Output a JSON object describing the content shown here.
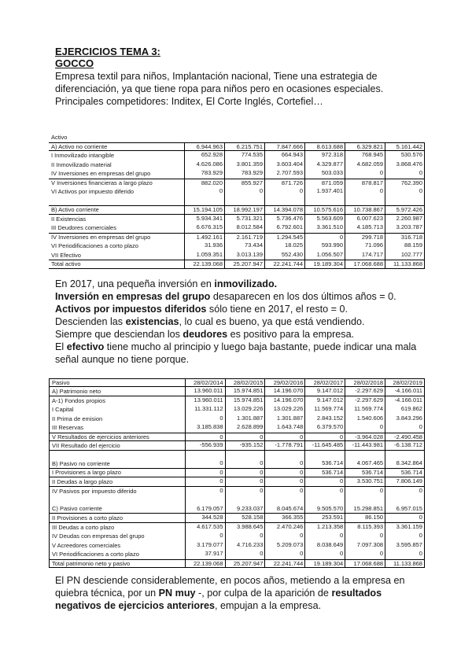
{
  "header": {
    "title": "EJERCICIOS TEMA 3:",
    "subtitle": "GOCCO"
  },
  "paragraphs": {
    "intro": [
      {
        "t": "Empresa textil para niños, Implantación nacional, Tiene una estrategia de"
      },
      {
        "br": true
      },
      {
        "t": "diferenciación, ya que tiene ropa para niños pero en ocasiones especiales."
      },
      {
        "br": true
      },
      {
        "t": "Principales competidores: Inditex, El Corte Inglés, Cortefiel…"
      }
    ],
    "activo_analysis": [
      [
        {
          "t": "En 2017, una pequeña inversión en "
        },
        {
          "t": "inmovilizado.",
          "b": true
        }
      ],
      [
        {
          "t": "Inversión en empresas del grupo",
          "b": true
        },
        {
          "t": " desaparecen en los dos últimos años = 0."
        }
      ],
      [
        {
          "t": "Activos por impuestos diferidos",
          "b": true
        },
        {
          "t": " sólo tiene en 2017, el resto = 0."
        }
      ],
      [
        {
          "t": "Descienden las "
        },
        {
          "t": "existencias",
          "b": true
        },
        {
          "t": ", lo cual es bueno, ya que está vendiendo."
        }
      ],
      [
        {
          "t": "Siempre que desciendan los "
        },
        {
          "t": "deudores",
          "b": true
        },
        {
          "t": " es positivo para la empresa."
        }
      ],
      [
        {
          "t": "El "
        },
        {
          "t": "efectivo",
          "b": true
        },
        {
          "t": " tiene mucho al principio y luego baja bastante, puede indicar una mala señal aunque no tiene porque."
        }
      ]
    ],
    "pasivo_analysis": [
      {
        "t": "El PN desciende considerablemente, en pocos años, metiendo a la empresa en"
      },
      {
        "br": true
      },
      {
        "t": "quiebra técnica, por un "
      },
      {
        "t": "PN muy",
        "b": true
      },
      {
        "t": " -, por culpa de la aparición de "
      },
      {
        "t": "resultados",
        "b": true
      },
      {
        "br": true
      },
      {
        "t": "negativos de ejercicios anteriores",
        "b": true
      },
      {
        "t": ", empujan a la empresa."
      }
    ]
  },
  "tables": {
    "activo": {
      "rows": [
        {
          "kind": "caption",
          "label": "Activo",
          "values": [
            "",
            "",
            "",
            "",
            "",
            ""
          ]
        },
        {
          "kind": "section",
          "bt": true,
          "bb": true,
          "label": "A) Activo no corriente",
          "values": [
            "6.944.963",
            "6.215.751",
            "7.847.666",
            "8.613.688",
            "6.329.821",
            "5.161.442"
          ]
        },
        {
          "kind": "item",
          "label": "I Inmovilizado intangible",
          "values": [
            "652.928",
            "774.535",
            "664.943",
            "972.318",
            "768.945",
            "530.576"
          ]
        },
        {
          "kind": "item",
          "label": "II Inmovilizado material",
          "values": [
            "4.626.086",
            "3.801.359",
            "3.603.404",
            "4.329.877",
            "4.682.059",
            "3.868.476"
          ]
        },
        {
          "kind": "item",
          "label": "IV Inversiones en empresas del grupo",
          "values": [
            "783.929",
            "783.929",
            "2.707.593",
            "503.033",
            "0",
            "0"
          ]
        },
        {
          "kind": "item",
          "bt": true,
          "label": "V Inversiones financieras a largo plazo",
          "values": [
            "882.020",
            "855.927",
            "871.726",
            "871.059",
            "878.817",
            "762.390"
          ]
        },
        {
          "kind": "item",
          "label": "VI Activos por impuesto diferido",
          "values": [
            "0",
            "0",
            "0",
            "1.937.401",
            "0",
            "0"
          ]
        },
        {
          "kind": "blank",
          "label": "",
          "values": [
            "",
            "",
            "",
            "",
            "",
            ""
          ]
        },
        {
          "kind": "section",
          "bt": true,
          "bb": true,
          "label": "B) Activo corriente",
          "values": [
            "15.194.105",
            "18.992.197",
            "14.394.078",
            "10.575.616",
            "10.738.867",
            "5.972.426"
          ]
        },
        {
          "kind": "item",
          "label": "II Existencias",
          "values": [
            "5.934.341",
            "5.731.321",
            "5.736.476",
            "5.563.609",
            "6.007.623",
            "2.260.987"
          ]
        },
        {
          "kind": "item",
          "label": "III Deudores comerciales",
          "values": [
            "6.676.315",
            "8.012.584",
            "6.792.601",
            "3.361.510",
            "4.185.713",
            "3.203.787"
          ]
        },
        {
          "kind": "item",
          "bt": true,
          "label": "IV Inversiones en empresas del grupo",
          "values": [
            "1.492.161",
            "2.161.719",
            "1.294.545",
            "0",
            "299.718",
            "316.718"
          ]
        },
        {
          "kind": "item",
          "label": "VI Periodificaciones a corto plazo",
          "values": [
            "31.936",
            "73.434",
            "18.025",
            "593.990",
            "71.096",
            "88.159"
          ]
        },
        {
          "kind": "item",
          "label": "VII Efectivo",
          "values": [
            "1.059.351",
            "3.013.139",
            "552.430",
            "1.056.507",
            "174.717",
            "102.777"
          ]
        },
        {
          "kind": "total",
          "bt": true,
          "bb": true,
          "label": "Total activo",
          "values": [
            "22.139.068",
            "25.207.947",
            "22.241.744",
            "19.189.304",
            "17.068.688",
            "11.133.868"
          ]
        }
      ]
    },
    "pasivo": {
      "rows": [
        {
          "kind": "header",
          "bt": true,
          "bb": true,
          "label": "Pasivo",
          "values": [
            "28/02/2014",
            "28/02/2015",
            "29/02/2016",
            "28/02/2017",
            "28/02/2018",
            "28/02/2019"
          ]
        },
        {
          "kind": "section",
          "bb": true,
          "label": "A) Patrimonio neto",
          "values": [
            "13.960.011",
            "15.974.851",
            "14.196.070",
            "9.147.012",
            "-2.297.629",
            "-4.166.011"
          ]
        },
        {
          "kind": "item",
          "label": "A-1) Fondos propios",
          "values": [
            "13.960.011",
            "15.974.851",
            "14.196.070",
            "9.147.012",
            "-2.297.629",
            "-4.166.011"
          ]
        },
        {
          "kind": "item",
          "label": "I Capital",
          "values": [
            "11.331.112",
            "13.029.226",
            "13.029.226",
            "11.569.774",
            "11.569.774",
            "619.862"
          ]
        },
        {
          "kind": "item",
          "label": "II Prima de emision",
          "values": [
            "0",
            "1.301.887",
            "1.301.887",
            "2.843.152",
            "1.540.606",
            "3.843.296"
          ]
        },
        {
          "kind": "item",
          "label": "III Reservas",
          "values": [
            "3.185.838",
            "2.628.899",
            "1.643.748",
            "6.379.570",
            "0",
            "0"
          ]
        },
        {
          "kind": "item",
          "bt": true,
          "bb": true,
          "label": "V Resultados de ejercicios anteriores",
          "values": [
            "0",
            "0",
            "0",
            "0",
            "-3.964.028",
            "-2.490.458"
          ]
        },
        {
          "kind": "item",
          "bb": true,
          "label": "VII Resultado del ejercicio",
          "values": [
            "-556.939",
            "-935.152",
            "-1.778.791",
            "-11.645.485",
            "-11.443.981",
            "-6.138.712"
          ]
        },
        {
          "kind": "blank",
          "label": "",
          "values": [
            "",
            "",
            "",
            "",
            "",
            ""
          ]
        },
        {
          "kind": "section",
          "bb": true,
          "label": "B) Pasivo no corriente",
          "values": [
            "0",
            "0",
            "0",
            "536.714",
            "4.067.465",
            "8.342.864"
          ]
        },
        {
          "kind": "item",
          "bb": true,
          "label": "I Provisiones a largo plazo",
          "values": [
            "0",
            "0",
            "0",
            "536.714",
            "536.714",
            "536.714"
          ]
        },
        {
          "kind": "item",
          "bb": true,
          "label": "II Deudas a largo plazo",
          "values": [
            "0",
            "0",
            "0",
            "0",
            "3.530.751",
            "7.806.149"
          ]
        },
        {
          "kind": "item",
          "label": "IV Pasivos por impuesto diferido",
          "values": [
            "0",
            "0",
            "0",
            "0",
            "0",
            "0"
          ]
        },
        {
          "kind": "blank",
          "label": "",
          "values": [
            "",
            "",
            "",
            "",
            "",
            ""
          ]
        },
        {
          "kind": "section",
          "bb": true,
          "label": "C) Pasivo corriente",
          "values": [
            "6.179.057",
            "9.233.037",
            "8.045.674",
            "9.505.570",
            "15.298.851",
            "6.957.015"
          ]
        },
        {
          "kind": "item",
          "bb": true,
          "label": "II Provisiones a corto plazo",
          "values": [
            "344.528",
            "528.158",
            "366.355",
            "253.591",
            "86.150",
            "0"
          ]
        },
        {
          "kind": "item",
          "label": "III Deudas a corto plazo",
          "values": [
            "4.617.535",
            "3.988.645",
            "2.470.246",
            "1.213.358",
            "8.115.393",
            "3.361.159"
          ]
        },
        {
          "kind": "item",
          "label": "IV Deudas con empresas del grupo",
          "values": [
            "0",
            "0",
            "0",
            "0",
            "0",
            "0"
          ]
        },
        {
          "kind": "item",
          "label": "V Acreedores comerciales",
          "values": [
            "3.179.077",
            "4.716.233",
            "5.209.073",
            "8.038.649",
            "7.097.308",
            "3.595.857"
          ]
        },
        {
          "kind": "item",
          "label": "VI Periodificaciones a corto plazo",
          "values": [
            "37.917",
            "0",
            "0",
            "0",
            "0",
            "0"
          ]
        },
        {
          "kind": "total",
          "bt": true,
          "bb": true,
          "label": "Total patrimonio neto y pasivo",
          "values": [
            "22.139.068",
            "25.207.947",
            "22.241.744",
            "19.189.304",
            "17.068.688",
            "11.133.868"
          ]
        }
      ]
    }
  }
}
